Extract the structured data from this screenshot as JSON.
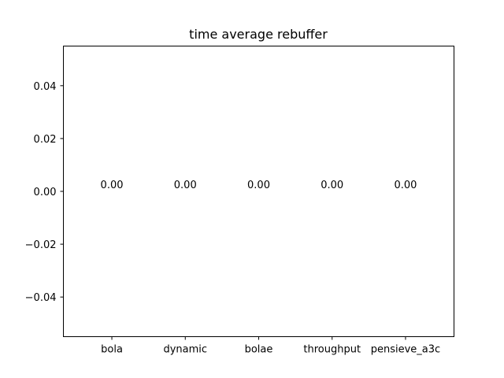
{
  "chart_data": {
    "type": "bar",
    "title": "time average rebuffer",
    "xlabel": "",
    "ylabel": "",
    "categories": [
      "bola",
      "dynamic",
      "bolae",
      "throughput",
      "pensieve_a3c"
    ],
    "values": [
      0.0,
      0.0,
      0.0,
      0.0,
      0.0
    ],
    "data_labels": [
      "0.00",
      "0.00",
      "0.00",
      "0.00",
      "0.00"
    ],
    "ylim": [
      -0.055,
      0.055
    ],
    "yticks": [
      -0.04,
      -0.02,
      0.0,
      0.02,
      0.04
    ],
    "ytick_labels": [
      "−0.04",
      "−0.02",
      "0.00",
      "0.02",
      "0.04"
    ],
    "grid": false,
    "legend": "none",
    "colors": {
      "bar": "#1f77b4",
      "axes": "#000000",
      "background": "#ffffff"
    }
  }
}
